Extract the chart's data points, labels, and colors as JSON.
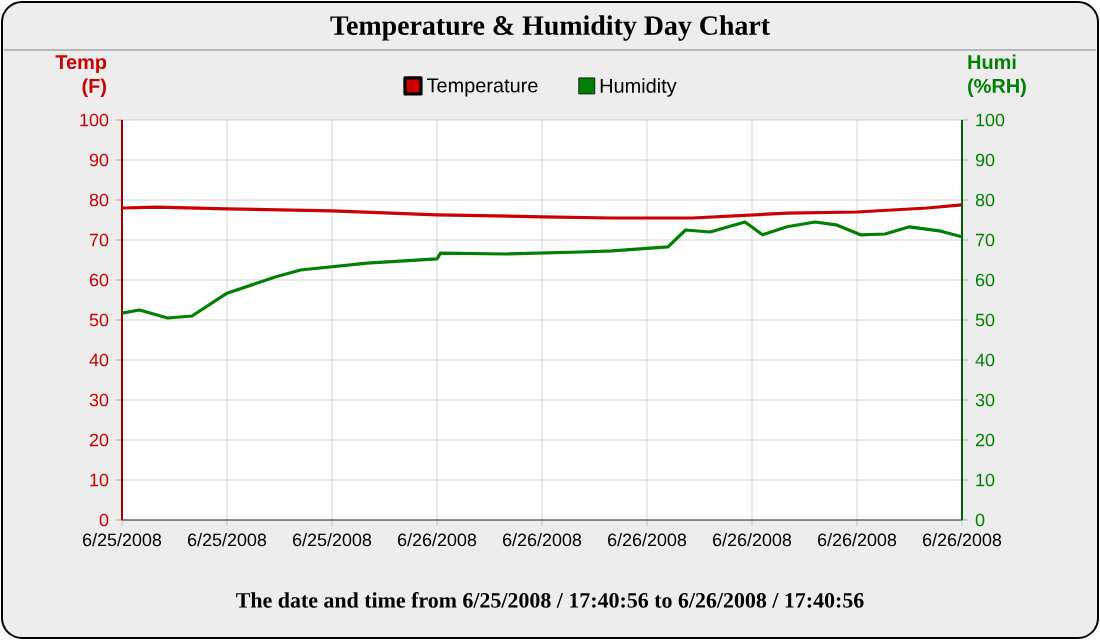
{
  "chart_data": {
    "type": "line",
    "title": "Temperature & Humidity Day Chart",
    "ylabel": "Temp (F)",
    "y2label": "Humi (%RH)",
    "annotations": [
      "The date and time from  6/25/2008 / 17:40:56  to  6/26/2008 / 17:40:56"
    ],
    "xlim": [
      "2008-06-25T17:41",
      "2008-06-26T17:41"
    ],
    "xticks": [
      {
        "value": "2008-06-25T17:41",
        "label": "6/25/2008"
      },
      {
        "value": "2008-06-25T20:41",
        "label": "6/25/2008"
      },
      {
        "value": "2008-06-25T23:41",
        "label": "6/25/2008"
      },
      {
        "value": "2008-06-26T02:41",
        "label": "6/26/2008"
      },
      {
        "value": "2008-06-26T05:41",
        "label": "6/26/2008"
      },
      {
        "value": "2008-06-26T08:41",
        "label": "6/26/2008"
      },
      {
        "value": "2008-06-26T11:41",
        "label": "6/26/2008"
      },
      {
        "value": "2008-06-26T14:41",
        "label": "6/26/2008"
      },
      {
        "value": "2008-06-26T17:41",
        "label": "6/26/2008"
      }
    ],
    "ylim": [
      0,
      100
    ],
    "yticks": [
      0,
      10,
      20,
      30,
      40,
      50,
      60,
      70,
      80,
      90,
      100
    ],
    "y2lim": [
      0,
      100
    ],
    "y2ticks": [
      0,
      10,
      20,
      30,
      40,
      50,
      60,
      70,
      80,
      90,
      100
    ],
    "grid": true,
    "legend": "top",
    "marker": "none",
    "line_style": "solid",
    "series": [
      {
        "name": "Temperature",
        "color": "#cc0000",
        "x": [
          "2008-06-25T17:41",
          "2008-06-25T18:41",
          "2008-06-25T20:41",
          "2008-06-25T23:41",
          "2008-06-26T02:41",
          "2008-06-26T05:41",
          "2008-06-26T07:41",
          "2008-06-26T09:59",
          "2008-06-26T12:41",
          "2008-06-26T14:41",
          "2008-06-26T16:41",
          "2008-06-26T17:41"
        ],
        "values": [
          78,
          78.2,
          77.8,
          77.3,
          76.3,
          75.8,
          75.5,
          75.5,
          76.7,
          77,
          78,
          78.8
        ]
      },
      {
        "name": "Humidity",
        "color": "#008000",
        "axis": "y2",
        "x": [
          "2008-06-25T17:41",
          "2008-06-25T18:11",
          "2008-06-25T18:59",
          "2008-06-25T19:41",
          "2008-06-25T20:41",
          "2008-06-25T22:05",
          "2008-06-25T22:47",
          "2008-06-26T00:41",
          "2008-06-26T02:41",
          "2008-06-26T02:47",
          "2008-06-26T04:41",
          "2008-06-26T06:47",
          "2008-06-26T07:41",
          "2008-06-26T09:17",
          "2008-06-26T09:47",
          "2008-06-26T10:29",
          "2008-06-26T11:29",
          "2008-06-26T11:59",
          "2008-06-26T12:41",
          "2008-06-26T13:29",
          "2008-06-26T14:05",
          "2008-06-26T14:47",
          "2008-06-26T15:29",
          "2008-06-26T16:11",
          "2008-06-26T17:05",
          "2008-06-26T17:41"
        ],
        "values": [
          51.7,
          52.5,
          50.5,
          51,
          56.7,
          60.8,
          62.5,
          64.2,
          65.3,
          66.7,
          66.5,
          67,
          67.3,
          68.3,
          72.5,
          72,
          74.5,
          71.3,
          73.3,
          74.5,
          73.8,
          71.3,
          71.5,
          73.3,
          72.2,
          70.8
        ]
      }
    ]
  }
}
